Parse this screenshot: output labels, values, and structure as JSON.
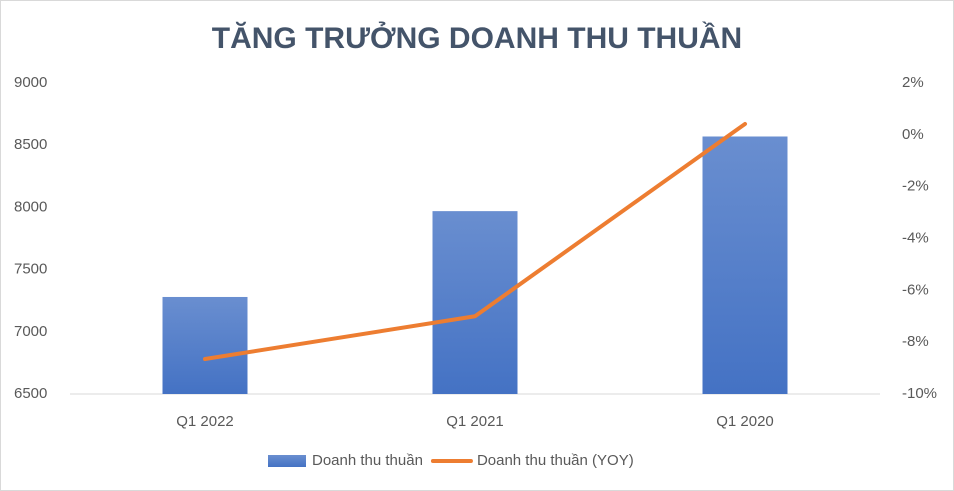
{
  "chart_data": {
    "type": "bar_line",
    "title": "TĂNG TRƯỞNG DOANH THU THUẦN",
    "categories": [
      "Q1 2022",
      "Q1 2021",
      "Q1 2020"
    ],
    "series": [
      {
        "name": "Doanh thu thuần",
        "type": "bar",
        "color": "#4472c4",
        "values": [
          7280,
          7970,
          8570
        ]
      },
      {
        "name": "Doanh thu thuần (YOY)",
        "type": "line",
        "color": "#ed7d31",
        "axis": "y2",
        "values": [
          -8.65,
          -7,
          0.42
        ]
      }
    ],
    "ylim": [
      6500,
      9000
    ],
    "yticks": [
      6500,
      7000,
      7500,
      8000,
      8500,
      9000
    ],
    "y2lim": [
      -10,
      2
    ],
    "y2ticks": [
      {
        "value": -10,
        "label": "-10%"
      },
      {
        "value": -8,
        "label": "-8%"
      },
      {
        "value": -6,
        "label": "-6%"
      },
      {
        "value": -4,
        "label": "-4%"
      },
      {
        "value": -2,
        "label": "-2%"
      },
      {
        "value": 0,
        "label": "0%"
      },
      {
        "value": 2,
        "label": "2%"
      }
    ],
    "legend": "bottom"
  }
}
